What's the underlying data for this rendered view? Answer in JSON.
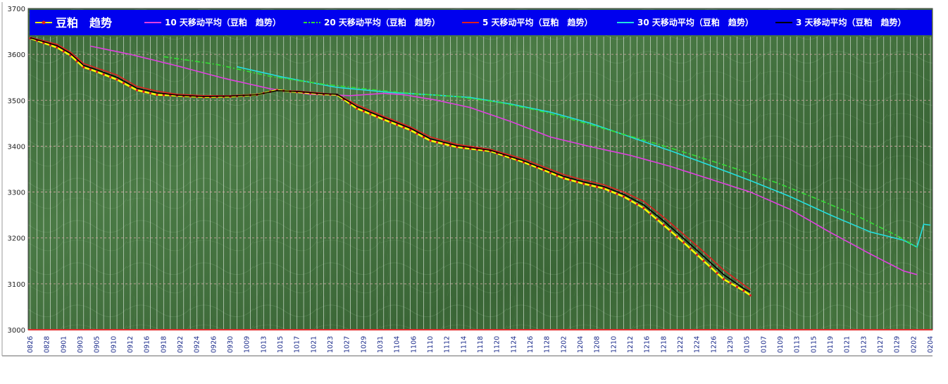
{
  "chart_data": {
    "type": "line",
    "title": "",
    "xlabel": "",
    "ylabel": "",
    "ylim": [
      3000,
      3700
    ],
    "yticks": [
      3000,
      3100,
      3200,
      3300,
      3400,
      3500,
      3600,
      3700
    ],
    "grid": true,
    "legend_position": "top",
    "background": "green marble texture",
    "x_tick_labels": [
      "0826",
      "0828",
      "0901",
      "0903",
      "0905",
      "0910",
      "0912",
      "0916",
      "0918",
      "0922",
      "0924",
      "0926",
      "0930",
      "1009",
      "1013",
      "1015",
      "1017",
      "1021",
      "1023",
      "1027",
      "1029",
      "1031",
      "1104",
      "1106",
      "1110",
      "1112",
      "1114",
      "1118",
      "1120",
      "1124",
      "1126",
      "1128",
      "1202",
      "1204",
      "1208",
      "1210",
      "1212",
      "1216",
      "1218",
      "1222",
      "1224",
      "1226",
      "1230",
      "0105",
      "0107",
      "0109",
      "0113",
      "0115",
      "0119",
      "0121",
      "0123",
      "0127",
      "0129",
      "0202",
      "0204"
    ],
    "series": [
      {
        "name": "豆粕　趋势",
        "color": "#ffff00",
        "anchors": [
          [
            0,
            3635
          ],
          [
            4,
            3615
          ],
          [
            6,
            3598
          ],
          [
            8,
            3572
          ],
          [
            10,
            3562
          ],
          [
            13,
            3545
          ],
          [
            16,
            3522
          ],
          [
            19,
            3512
          ],
          [
            22,
            3510
          ],
          [
            26,
            3507
          ],
          [
            30,
            3508
          ],
          [
            34,
            3512
          ],
          [
            37,
            3522
          ],
          [
            40,
            3518
          ],
          [
            44,
            3513
          ],
          [
            46,
            3512
          ],
          [
            49,
            3482
          ],
          [
            53,
            3458
          ],
          [
            57,
            3435
          ],
          [
            60,
            3412
          ],
          [
            64,
            3398
          ],
          [
            69,
            3389
          ],
          [
            74,
            3365
          ],
          [
            77,
            3348
          ],
          [
            80,
            3330
          ],
          [
            83,
            3318
          ],
          [
            86,
            3308
          ],
          [
            89,
            3290
          ],
          [
            92,
            3265
          ],
          [
            95,
            3228
          ],
          [
            98,
            3190
          ],
          [
            101,
            3150
          ],
          [
            104,
            3110
          ],
          [
            107,
            3085
          ],
          [
            108,
            3075
          ]
        ]
      },
      {
        "name": "10 天移动平均（豆粕　趋势）",
        "color": "#e040e0",
        "anchors": [
          [
            9,
            3618
          ],
          [
            15,
            3600
          ],
          [
            22,
            3575
          ],
          [
            29,
            3548
          ],
          [
            36,
            3525
          ],
          [
            42,
            3513
          ],
          [
            48,
            3510
          ],
          [
            53,
            3515
          ],
          [
            56,
            3512
          ],
          [
            61,
            3500
          ],
          [
            66,
            3484
          ],
          [
            72,
            3454
          ],
          [
            78,
            3420
          ],
          [
            84,
            3399
          ],
          [
            90,
            3380
          ],
          [
            96,
            3356
          ],
          [
            102,
            3328
          ],
          [
            108,
            3300
          ],
          [
            114,
            3262
          ],
          [
            120,
            3212
          ],
          [
            126,
            3165
          ],
          [
            131,
            3128
          ],
          [
            133,
            3120
          ]
        ]
      },
      {
        "name": "20 天移动平均（豆粕　趋势）",
        "color": "#33dd33",
        "anchors": [
          [
            20,
            3595
          ],
          [
            28,
            3578
          ],
          [
            36,
            3552
          ],
          [
            44,
            3535
          ],
          [
            52,
            3522
          ],
          [
            58,
            3514
          ],
          [
            64,
            3508
          ],
          [
            70,
            3496
          ],
          [
            76,
            3478
          ],
          [
            82,
            3455
          ],
          [
            88,
            3430
          ],
          [
            94,
            3405
          ],
          [
            100,
            3378
          ],
          [
            106,
            3350
          ],
          [
            112,
            3320
          ],
          [
            118,
            3285
          ],
          [
            124,
            3248
          ],
          [
            130,
            3205
          ],
          [
            133,
            3180
          ]
        ]
      },
      {
        "name": "5 天移动平均（豆粕　趋势）",
        "color": "#dd2020",
        "anchors": [
          [
            0,
            3637
          ],
          [
            4,
            3622
          ],
          [
            6,
            3605
          ],
          [
            8,
            3580
          ],
          [
            10,
            3570
          ],
          [
            13,
            3555
          ],
          [
            16,
            3530
          ],
          [
            19,
            3520
          ],
          [
            22,
            3513
          ],
          [
            26,
            3510
          ],
          [
            30,
            3510
          ],
          [
            34,
            3513
          ],
          [
            37,
            3521
          ],
          [
            40,
            3520
          ],
          [
            44,
            3515
          ],
          [
            46,
            3513
          ],
          [
            49,
            3490
          ],
          [
            53,
            3465
          ],
          [
            57,
            3442
          ],
          [
            60,
            3420
          ],
          [
            64,
            3404
          ],
          [
            69,
            3393
          ],
          [
            74,
            3372
          ],
          [
            77,
            3355
          ],
          [
            80,
            3338
          ],
          [
            83,
            3326
          ],
          [
            86,
            3316
          ],
          [
            89,
            3300
          ],
          [
            92,
            3280
          ],
          [
            95,
            3245
          ],
          [
            98,
            3208
          ],
          [
            101,
            3170
          ],
          [
            104,
            3130
          ],
          [
            107,
            3098
          ],
          [
            108,
            3088
          ]
        ]
      },
      {
        "name": "30 天移动平均（豆粕　趋势）",
        "color": "#22e0e0",
        "anchors": [
          [
            31,
            3573
          ],
          [
            38,
            3550
          ],
          [
            46,
            3528
          ],
          [
            54,
            3517
          ],
          [
            60,
            3512
          ],
          [
            66,
            3506
          ],
          [
            72,
            3492
          ],
          [
            78,
            3474
          ],
          [
            84,
            3450
          ],
          [
            90,
            3420
          ],
          [
            96,
            3390
          ],
          [
            102,
            3358
          ],
          [
            108,
            3325
          ],
          [
            114,
            3290
          ],
          [
            120,
            3250
          ],
          [
            126,
            3213
          ],
          [
            131,
            3195
          ],
          [
            133,
            3180
          ],
          [
            134,
            3230
          ],
          [
            135,
            3228
          ]
        ]
      },
      {
        "name": "3 天移动平均（豆粕　趋势）",
        "color": "#000000",
        "anchors": [
          [
            0,
            3636
          ],
          [
            4,
            3619
          ],
          [
            6,
            3602
          ],
          [
            8,
            3576
          ],
          [
            10,
            3566
          ],
          [
            13,
            3550
          ],
          [
            16,
            3526
          ],
          [
            19,
            3516
          ],
          [
            22,
            3511
          ],
          [
            26,
            3508
          ],
          [
            30,
            3509
          ],
          [
            34,
            3512
          ],
          [
            37,
            3521
          ],
          [
            40,
            3519
          ],
          [
            44,
            3514
          ],
          [
            46,
            3513
          ],
          [
            49,
            3486
          ],
          [
            53,
            3462
          ],
          [
            57,
            3439
          ],
          [
            60,
            3416
          ],
          [
            64,
            3401
          ],
          [
            69,
            3391
          ],
          [
            74,
            3368
          ],
          [
            77,
            3351
          ],
          [
            80,
            3334
          ],
          [
            83,
            3322
          ],
          [
            86,
            3312
          ],
          [
            89,
            3295
          ],
          [
            92,
            3272
          ],
          [
            95,
            3237
          ],
          [
            98,
            3199
          ],
          [
            101,
            3160
          ],
          [
            104,
            3120
          ],
          [
            107,
            3090
          ],
          [
            108,
            3082
          ]
        ]
      }
    ]
  }
}
